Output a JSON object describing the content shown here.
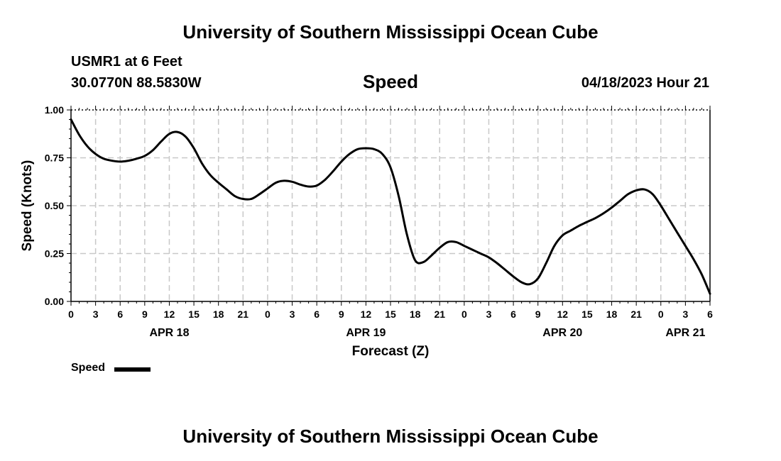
{
  "header": {
    "title": "University of Southern Mississippi Ocean Cube",
    "station": "USMR1 at 6 Feet",
    "coordinates": "30.0770N  88.5830W",
    "datetime": "04/18/2023 Hour 21"
  },
  "footer": {
    "title": "University of Southern Mississippi Ocean Cube"
  },
  "chart_data": {
    "type": "line",
    "title": "Speed",
    "xlabel": "Forecast (Z)",
    "ylabel": "Speed (Knots)",
    "ylim": [
      0,
      1
    ],
    "xlim_hours": [
      0,
      78
    ],
    "grid": true,
    "y_ticks": [
      "0.00",
      "0.25",
      "0.50",
      "0.75",
      "1.00"
    ],
    "y_tick_values": [
      0,
      0.25,
      0.5,
      0.75,
      1.0
    ],
    "x_tick_labels": [
      "0",
      "3",
      "6",
      "9",
      "12",
      "15",
      "18",
      "21",
      "0",
      "3",
      "6",
      "9",
      "12",
      "15",
      "18",
      "21",
      "0",
      "3",
      "6",
      "9",
      "12",
      "15",
      "18",
      "21",
      "0",
      "3",
      "6"
    ],
    "date_labels": [
      {
        "label": "APR 18",
        "hour": 12
      },
      {
        "label": "APR 19",
        "hour": 36
      },
      {
        "label": "APR 20",
        "hour": 60
      },
      {
        "label": "APR 21",
        "hour": 75
      }
    ],
    "series": [
      {
        "name": "Speed",
        "color": "#000000",
        "x_hours": [
          0,
          1,
          2,
          3,
          4,
          5,
          6,
          7,
          8,
          9,
          10,
          11,
          12,
          13,
          14,
          15,
          16,
          17,
          18,
          19,
          20,
          21,
          22,
          23,
          24,
          25,
          26,
          27,
          28,
          29,
          30,
          31,
          32,
          33,
          34,
          35,
          36,
          37,
          38,
          39,
          40,
          41,
          42,
          43,
          44,
          45,
          46,
          47,
          48,
          49,
          50,
          51,
          52,
          53,
          54,
          55,
          56,
          57,
          58,
          59,
          60,
          61,
          62,
          63,
          64,
          65,
          66,
          67,
          68,
          69,
          70,
          71,
          72,
          73,
          74,
          75,
          76,
          77,
          78
        ],
        "values": [
          0.95,
          0.87,
          0.81,
          0.77,
          0.745,
          0.735,
          0.73,
          0.735,
          0.745,
          0.76,
          0.79,
          0.835,
          0.875,
          0.885,
          0.86,
          0.8,
          0.72,
          0.66,
          0.62,
          0.585,
          0.55,
          0.535,
          0.535,
          0.56,
          0.59,
          0.62,
          0.63,
          0.625,
          0.61,
          0.6,
          0.605,
          0.635,
          0.68,
          0.73,
          0.77,
          0.795,
          0.8,
          0.795,
          0.77,
          0.7,
          0.55,
          0.35,
          0.215,
          0.205,
          0.24,
          0.28,
          0.31,
          0.31,
          0.29,
          0.27,
          0.25,
          0.23,
          0.2,
          0.165,
          0.13,
          0.1,
          0.09,
          0.12,
          0.2,
          0.29,
          0.345,
          0.37,
          0.395,
          0.415,
          0.435,
          0.46,
          0.49,
          0.525,
          0.56,
          0.58,
          0.585,
          0.56,
          0.5,
          0.43,
          0.36,
          0.29,
          0.22,
          0.14,
          0.04
        ]
      }
    ],
    "legend": {
      "label": "Speed",
      "placement": "bottom-left"
    }
  }
}
